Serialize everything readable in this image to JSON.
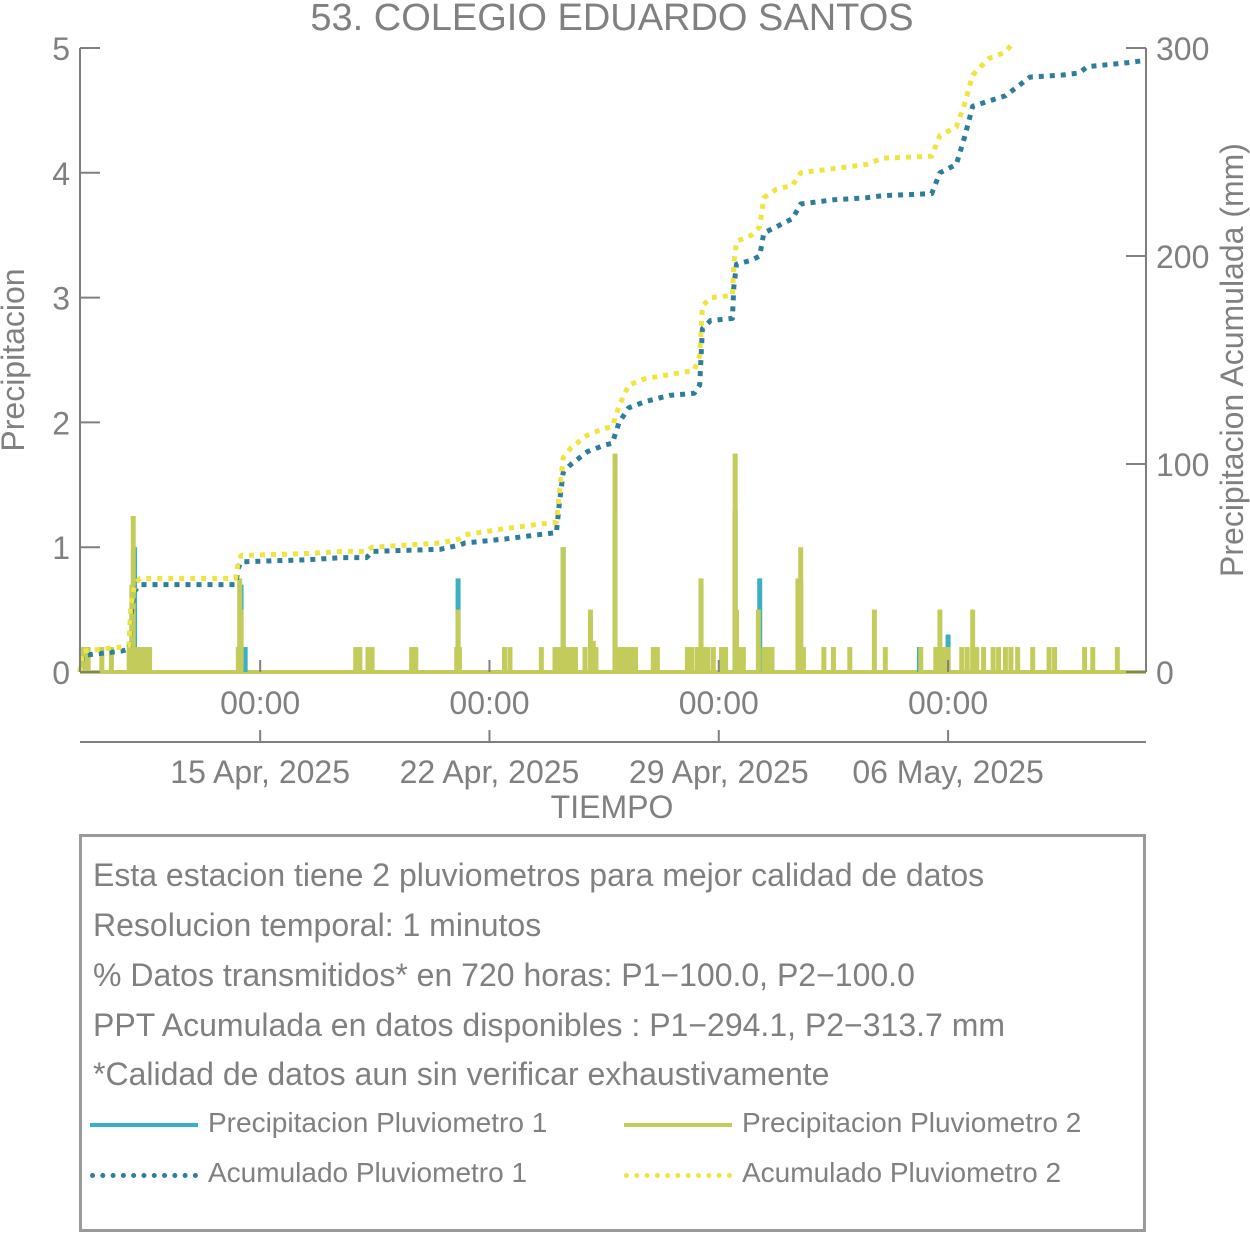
{
  "chart_data": {
    "type": "bar+line",
    "title": "53. COLEGIO EDUARDO SANTOS",
    "xlabel": "TIEMPO",
    "ylabel_left": "Precipitacion",
    "ylabel_right": "Precipitacion Acumulada (mm)",
    "x_range": [
      "2025-04-09T12:00",
      "2025-05-12T01:00"
    ],
    "ylim_left": [
      0,
      5
    ],
    "ylim_right": [
      0,
      300
    ],
    "yticks_left": [
      0,
      1,
      2,
      3,
      4,
      5
    ],
    "yticks_right": [
      0,
      100,
      200,
      300
    ],
    "xticks": [
      {
        "t": "2025-04-15T00:00",
        "time": "00:00",
        "date": "15 Apr, 2025"
      },
      {
        "t": "2025-04-22T00:00",
        "time": "00:00",
        "date": "22 Apr, 2025"
      },
      {
        "t": "2025-04-29T00:00",
        "time": "00:00",
        "date": "29 Apr, 2025"
      },
      {
        "t": "2025-05-06T00:00",
        "time": "00:00",
        "date": "06 May, 2025"
      }
    ],
    "grid": false,
    "series": [
      {
        "name": "Precipitacion Pluviometro 1",
        "kind": "bar",
        "axis": "left",
        "color": "#3ab0c0",
        "points": [
          [
            "2025-04-11T02:00",
            0.5
          ],
          [
            "2025-04-11T04:00",
            1.0
          ],
          [
            "2025-04-14T10:00",
            0.7
          ],
          [
            "2025-04-14T13:00",
            0.2
          ],
          [
            "2025-04-21T01:00",
            0.75
          ],
          [
            "2025-04-24T06:00",
            1.0
          ],
          [
            "2025-04-25T20:00",
            1.25
          ],
          [
            "2025-04-28T11:00",
            0.7
          ],
          [
            "2025-04-29T12:00",
            1.3
          ],
          [
            "2025-04-30T06:00",
            0.75
          ],
          [
            "2025-05-01T12:00",
            0.75
          ],
          [
            "2025-05-05T03:00",
            0.2
          ],
          [
            "2025-05-06T00:00",
            0.3
          ]
        ]
      },
      {
        "name": "Precipitacion Pluviometro 2",
        "kind": "bar",
        "axis": "left",
        "color": "#c3cc5a",
        "points": [
          [
            "2025-04-09T13:00",
            0.2
          ],
          [
            "2025-04-09T15:00",
            0.2
          ],
          [
            "2025-04-09T18:00",
            0.2
          ],
          [
            "2025-04-10T04:00",
            0.2
          ],
          [
            "2025-04-10T11:00",
            0.2
          ],
          [
            "2025-04-11T00:00",
            0.2
          ],
          [
            "2025-04-11T02:00",
            0.7
          ],
          [
            "2025-04-11T03:00",
            1.25
          ],
          [
            "2025-04-11T06:00",
            0.2
          ],
          [
            "2025-04-11T09:00",
            0.2
          ],
          [
            "2025-04-11T12:00",
            0.2
          ],
          [
            "2025-04-11T15:00",
            0.2
          ],
          [
            "2025-04-14T08:00",
            0.2
          ],
          [
            "2025-04-14T09:00",
            0.75
          ],
          [
            "2025-04-14T10:00",
            0.5
          ],
          [
            "2025-04-17T22:00",
            0.2
          ],
          [
            "2025-04-18T01:00",
            0.2
          ],
          [
            "2025-04-18T07:00",
            0.2
          ],
          [
            "2025-04-18T10:00",
            0.2
          ],
          [
            "2025-04-19T15:00",
            0.2
          ],
          [
            "2025-04-19T18:00",
            0.2
          ],
          [
            "2025-04-21T00:00",
            0.2
          ],
          [
            "2025-04-21T01:00",
            0.5
          ],
          [
            "2025-04-21T02:00",
            0.2
          ],
          [
            "2025-04-22T11:00",
            0.2
          ],
          [
            "2025-04-22T15:00",
            0.2
          ],
          [
            "2025-04-23T14:00",
            0.2
          ],
          [
            "2025-04-24T00:00",
            0.2
          ],
          [
            "2025-04-24T03:00",
            0.2
          ],
          [
            "2025-04-24T06:00",
            1.0
          ],
          [
            "2025-04-24T09:00",
            0.2
          ],
          [
            "2025-04-24T12:00",
            0.2
          ],
          [
            "2025-04-24T15:00",
            0.2
          ],
          [
            "2025-04-24T22:00",
            0.2
          ],
          [
            "2025-04-25T02:00",
            0.5
          ],
          [
            "2025-04-25T04:00",
            0.25
          ],
          [
            "2025-04-25T06:00",
            0.2
          ],
          [
            "2025-04-25T20:00",
            1.75
          ],
          [
            "2025-04-25T23:00",
            0.2
          ],
          [
            "2025-04-26T02:00",
            0.2
          ],
          [
            "2025-04-26T05:00",
            0.2
          ],
          [
            "2025-04-26T08:00",
            0.2
          ],
          [
            "2025-04-26T11:00",
            0.2
          ],
          [
            "2025-04-27T00:00",
            0.2
          ],
          [
            "2025-04-27T03:00",
            0.2
          ],
          [
            "2025-04-28T01:00",
            0.2
          ],
          [
            "2025-04-28T04:00",
            0.2
          ],
          [
            "2025-04-28T08:00",
            0.2
          ],
          [
            "2025-04-28T11:00",
            0.75
          ],
          [
            "2025-04-28T13:00",
            0.2
          ],
          [
            "2025-04-28T16:00",
            0.2
          ],
          [
            "2025-04-28T20:00",
            0.2
          ],
          [
            "2025-04-29T02:00",
            0.2
          ],
          [
            "2025-04-29T05:00",
            0.2
          ],
          [
            "2025-04-29T12:00",
            1.75
          ],
          [
            "2025-04-29T13:00",
            0.5
          ],
          [
            "2025-04-29T15:00",
            0.2
          ],
          [
            "2025-04-29T18:00",
            0.2
          ],
          [
            "2025-04-30T05:00",
            0.5
          ],
          [
            "2025-04-30T09:00",
            0.2
          ],
          [
            "2025-04-30T12:00",
            0.2
          ],
          [
            "2025-04-30T15:00",
            0.2
          ],
          [
            "2025-05-01T10:00",
            0.75
          ],
          [
            "2025-05-01T12:00",
            1.0
          ],
          [
            "2025-05-01T14:00",
            0.2
          ],
          [
            "2025-05-02T05:00",
            0.2
          ],
          [
            "2025-05-02T12:00",
            0.2
          ],
          [
            "2025-05-03T00:00",
            0.2
          ],
          [
            "2025-05-03T18:00",
            0.5
          ],
          [
            "2025-05-04T02:00",
            0.2
          ],
          [
            "2025-05-05T04:00",
            0.2
          ],
          [
            "2025-05-05T15:00",
            0.2
          ],
          [
            "2025-05-05T18:00",
            0.5
          ],
          [
            "2025-05-05T21:00",
            0.2
          ],
          [
            "2025-05-06T00:00",
            0.2
          ],
          [
            "2025-05-06T10:00",
            0.2
          ],
          [
            "2025-05-06T14:00",
            0.2
          ],
          [
            "2025-05-06T18:00",
            0.5
          ],
          [
            "2025-05-06T21:00",
            0.2
          ],
          [
            "2025-05-07T02:00",
            0.2
          ],
          [
            "2025-05-07T09:00",
            0.2
          ],
          [
            "2025-05-07T13:00",
            0.2
          ],
          [
            "2025-05-07T18:00",
            0.2
          ],
          [
            "2025-05-07T22:00",
            0.2
          ],
          [
            "2025-05-08T03:00",
            0.2
          ],
          [
            "2025-05-08T14:00",
            0.2
          ],
          [
            "2025-05-09T02:00",
            0.2
          ],
          [
            "2025-05-09T06:00",
            0.2
          ],
          [
            "2025-05-10T04:00",
            0.2
          ],
          [
            "2025-05-10T10:00",
            0.2
          ],
          [
            "2025-05-11T04:00",
            0.2
          ]
        ]
      },
      {
        "name": "Acumulado Pluviometro 1",
        "kind": "line",
        "style": "dotted",
        "axis": "right",
        "color": "#2e7d9a",
        "points": [
          [
            "2025-04-09T12:00",
            0
          ],
          [
            "2025-04-09T14:00",
            8
          ],
          [
            "2025-04-10T04:00",
            9
          ],
          [
            "2025-04-10T18:00",
            10
          ],
          [
            "2025-04-11T00:00",
            11
          ],
          [
            "2025-04-11T01:00",
            26
          ],
          [
            "2025-04-11T04:00",
            39
          ],
          [
            "2025-04-11T08:00",
            42
          ],
          [
            "2025-04-14T06:00",
            42
          ],
          [
            "2025-04-14T08:00",
            50
          ],
          [
            "2025-04-14T10:00",
            53
          ],
          [
            "2025-04-16T12:00",
            54
          ],
          [
            "2025-04-17T12:00",
            55
          ],
          [
            "2025-04-18T06:00",
            55
          ],
          [
            "2025-04-18T10:00",
            58
          ],
          [
            "2025-04-20T12:00",
            59
          ],
          [
            "2025-04-21T02:00",
            61
          ],
          [
            "2025-04-21T06:00",
            62
          ],
          [
            "2025-04-22T12:00",
            64
          ],
          [
            "2025-04-23T12:00",
            66
          ],
          [
            "2025-04-24T01:00",
            67
          ],
          [
            "2025-04-24T03:00",
            80
          ],
          [
            "2025-04-24T06:00",
            96
          ],
          [
            "2025-04-24T12:00",
            100
          ],
          [
            "2025-04-25T00:00",
            106
          ],
          [
            "2025-04-25T12:00",
            109
          ],
          [
            "2025-04-25T18:00",
            110
          ],
          [
            "2025-04-25T23:00",
            120
          ],
          [
            "2025-04-26T06:00",
            127
          ],
          [
            "2025-04-26T18:00",
            130
          ],
          [
            "2025-04-27T12:00",
            133
          ],
          [
            "2025-04-28T06:00",
            134
          ],
          [
            "2025-04-28T10:00",
            138
          ],
          [
            "2025-04-28T12:00",
            165
          ],
          [
            "2025-04-28T18:00",
            169
          ],
          [
            "2025-04-29T10:00",
            170
          ],
          [
            "2025-04-29T11:00",
            185
          ],
          [
            "2025-04-29T13:00",
            196
          ],
          [
            "2025-04-30T00:00",
            198
          ],
          [
            "2025-04-30T06:00",
            200
          ],
          [
            "2025-04-30T09:00",
            211
          ],
          [
            "2025-04-30T18:00",
            214
          ],
          [
            "2025-05-01T06:00",
            218
          ],
          [
            "2025-05-01T12:00",
            225
          ],
          [
            "2025-05-02T12:00",
            227
          ],
          [
            "2025-05-03T12:00",
            228
          ],
          [
            "2025-05-04T00:00",
            229
          ],
          [
            "2025-05-05T12:00",
            230
          ],
          [
            "2025-05-05T18:00",
            240
          ],
          [
            "2025-05-06T06:00",
            244
          ],
          [
            "2025-05-06T12:00",
            257
          ],
          [
            "2025-05-06T18:00",
            272
          ],
          [
            "2025-05-07T18:00",
            277
          ],
          [
            "2025-05-08T12:00",
            286
          ],
          [
            "2025-05-09T12:00",
            287
          ],
          [
            "2025-05-10T00:00",
            288
          ],
          [
            "2025-05-10T06:00",
            291
          ],
          [
            "2025-05-11T12:00",
            293
          ],
          [
            "2025-05-12T01:00",
            294.1
          ]
        ]
      },
      {
        "name": "Acumulado Pluviometro 2",
        "kind": "line",
        "style": "dotted",
        "axis": "right",
        "color": "#f0e442",
        "points": [
          [
            "2025-04-09T12:00",
            0
          ],
          [
            "2025-04-09T14:00",
            10
          ],
          [
            "2025-04-10T04:00",
            11
          ],
          [
            "2025-04-10T18:00",
            12
          ],
          [
            "2025-04-11T00:00",
            13
          ],
          [
            "2025-04-11T01:00",
            30
          ],
          [
            "2025-04-11T04:00",
            42
          ],
          [
            "2025-04-11T08:00",
            45
          ],
          [
            "2025-04-14T06:00",
            45
          ],
          [
            "2025-04-14T08:00",
            53
          ],
          [
            "2025-04-14T10:00",
            56
          ],
          [
            "2025-04-16T12:00",
            57
          ],
          [
            "2025-04-17T12:00",
            58
          ],
          [
            "2025-04-18T06:00",
            58
          ],
          [
            "2025-04-18T10:00",
            60
          ],
          [
            "2025-04-20T12:00",
            62
          ],
          [
            "2025-04-21T02:00",
            64
          ],
          [
            "2025-04-21T06:00",
            66
          ],
          [
            "2025-04-22T12:00",
            69
          ],
          [
            "2025-04-23T12:00",
            71
          ],
          [
            "2025-04-24T01:00",
            72
          ],
          [
            "2025-04-24T03:00",
            85
          ],
          [
            "2025-04-24T06:00",
            103
          ],
          [
            "2025-04-24T12:00",
            108
          ],
          [
            "2025-04-25T00:00",
            114
          ],
          [
            "2025-04-25T12:00",
            117
          ],
          [
            "2025-04-25T18:00",
            118
          ],
          [
            "2025-04-25T23:00",
            128
          ],
          [
            "2025-04-26T06:00",
            138
          ],
          [
            "2025-04-26T18:00",
            141
          ],
          [
            "2025-04-27T12:00",
            143
          ],
          [
            "2025-04-28T06:00",
            145
          ],
          [
            "2025-04-28T10:00",
            152
          ],
          [
            "2025-04-28T12:00",
            176
          ],
          [
            "2025-04-28T18:00",
            180
          ],
          [
            "2025-04-29T10:00",
            181
          ],
          [
            "2025-04-29T11:00",
            196
          ],
          [
            "2025-04-29T13:00",
            207
          ],
          [
            "2025-04-30T00:00",
            210
          ],
          [
            "2025-04-30T06:00",
            214
          ],
          [
            "2025-04-30T09:00",
            228
          ],
          [
            "2025-04-30T18:00",
            232
          ],
          [
            "2025-05-01T06:00",
            234
          ],
          [
            "2025-05-01T12:00",
            240
          ],
          [
            "2025-05-02T12:00",
            242
          ],
          [
            "2025-05-03T12:00",
            244
          ],
          [
            "2025-05-04T00:00",
            247
          ],
          [
            "2025-05-05T12:00",
            248
          ],
          [
            "2025-05-05T18:00",
            258
          ],
          [
            "2025-05-06T06:00",
            262
          ],
          [
            "2025-05-06T12:00",
            273
          ],
          [
            "2025-05-06T18:00",
            287
          ],
          [
            "2025-05-07T06:00",
            295
          ],
          [
            "2025-05-07T18:00",
            298
          ],
          [
            "2025-05-08T00:00",
            303
          ]
        ]
      }
    ]
  },
  "info": {
    "lines": [
      "Esta estacion tiene 2 pluviometros para mejor calidad de datos",
      "Resolucion temporal: 1 minutos",
      "% Datos transmitidos* en 720 horas: P1−100.0, P2−100.0",
      "PPT Acumulada en datos disponibles : P1−294.1, P2−313.7 mm",
      "*Calidad de datos aun sin verificar exhaustivamente"
    ]
  },
  "legend": {
    "items": [
      {
        "label": "Precipitacion Pluviometro 1",
        "color": "#3ab0c0",
        "style": "solid"
      },
      {
        "label": "Precipitacion Pluviometro 2",
        "color": "#c3cc5a",
        "style": "solid"
      },
      {
        "label": "Acumulado Pluviometro 1",
        "color": "#2e7d9a",
        "style": "dotted"
      },
      {
        "label": "Acumulado Pluviometro 2",
        "color": "#f0e442",
        "style": "dotted"
      }
    ]
  }
}
